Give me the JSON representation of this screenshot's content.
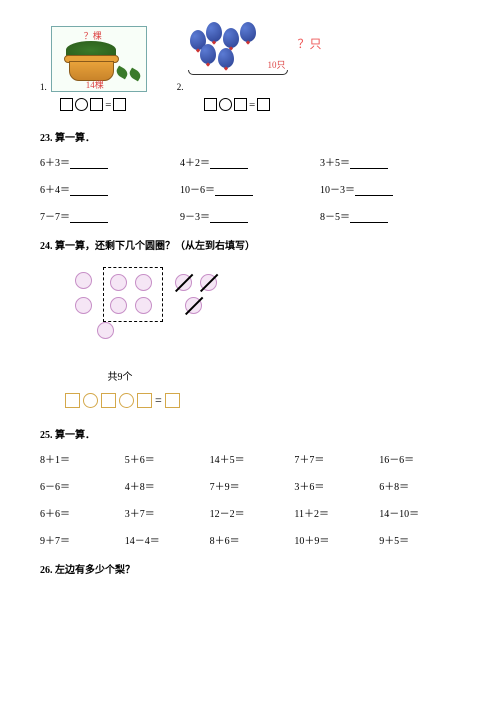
{
  "problem1": {
    "num": "1.",
    "top_label": "？棵",
    "bottom_label": "14棵"
  },
  "problem2": {
    "num": "2.",
    "right_label": "？只",
    "count_label": "10只"
  },
  "q23": {
    "heading": "23. 算一算．",
    "items": [
      "6＋3＝",
      "4＋2＝",
      "3＋5＝",
      "6＋4＝",
      "10－6＝",
      "10－3＝",
      "7－7＝",
      "9－3＝",
      "8－5＝"
    ]
  },
  "q24": {
    "heading": "24. 算一算，还剩下几个圆圈？（从左到右填写）",
    "caption": "共9个"
  },
  "q25": {
    "heading": "25. 算一算．",
    "items": [
      "8＋1＝",
      "5＋6＝",
      "14＋5＝",
      "7＋7＝",
      "16－6＝",
      "6－6＝",
      "4＋8＝",
      "7＋9＝",
      "3＋6＝",
      "6＋8＝",
      "6＋6＝",
      "3＋7＝",
      "12－2＝",
      "11＋2＝",
      "14－10＝",
      "9＋7＝",
      "14－4＝",
      "8＋6＝",
      "10＋9＝",
      "9＋5＝"
    ]
  },
  "q26": {
    "heading": "26. 左边有多少个梨？"
  },
  "eq_sign": "=",
  "colors": {
    "circle_border": "#c78fc7",
    "circle_fill": "#f5e6f5",
    "box_border": "#d4a84a"
  }
}
